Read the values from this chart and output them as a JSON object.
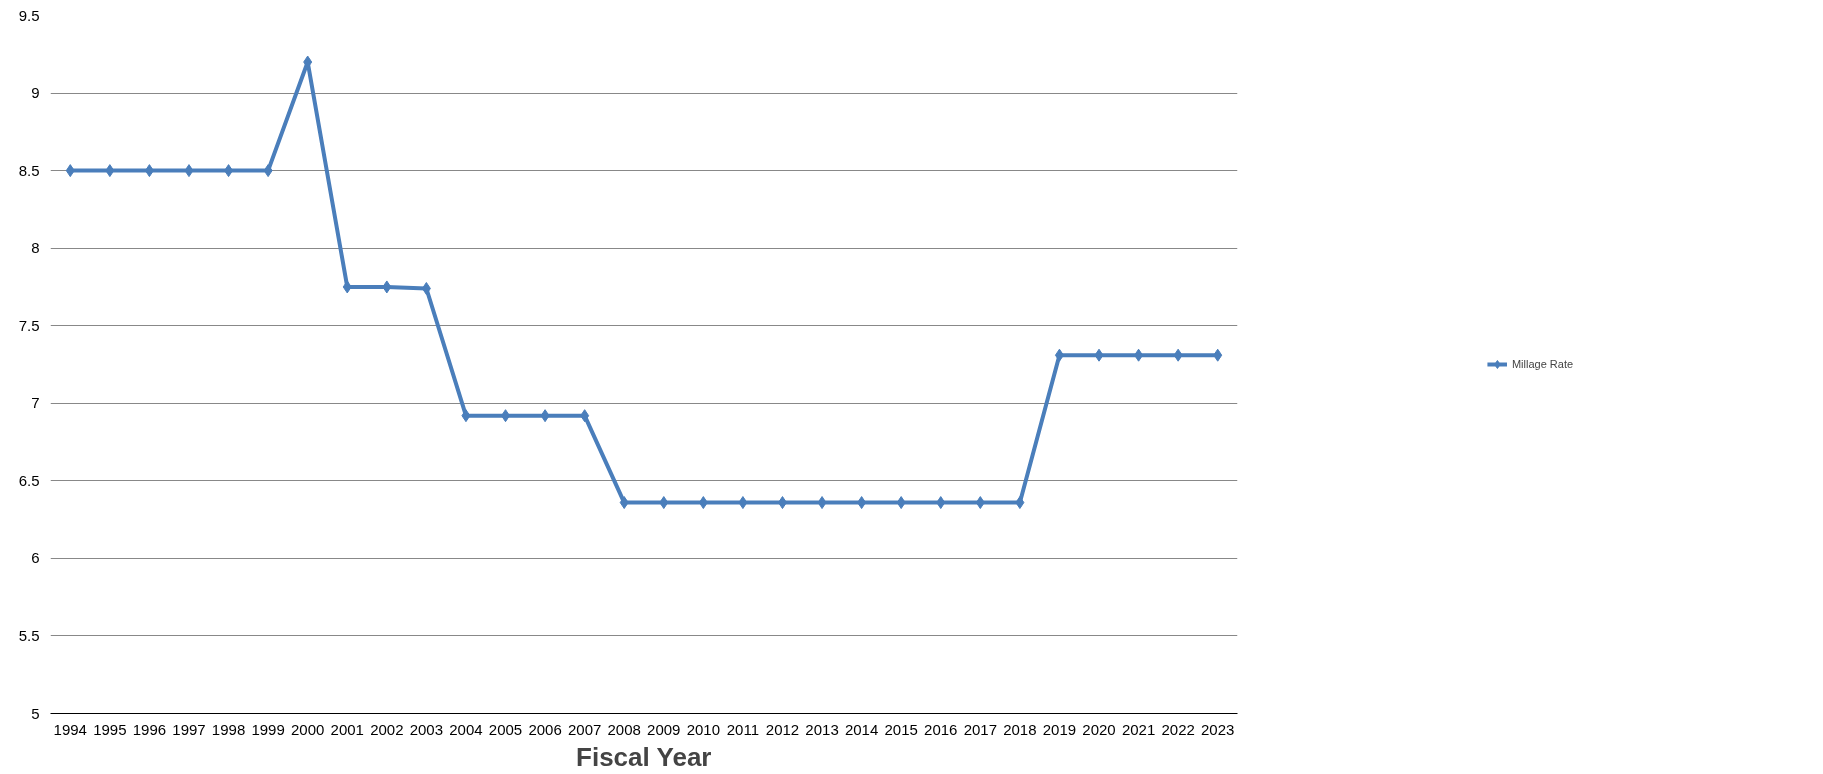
{
  "chart_data": {
    "type": "line",
    "xlabel": "Fiscal Year",
    "categories": [
      "1994",
      "1995",
      "1996",
      "1997",
      "1998",
      "1999",
      "2000",
      "2001",
      "2002",
      "2003",
      "2004",
      "2005",
      "2006",
      "2007",
      "2008",
      "2009",
      "2010",
      "2011",
      "2012",
      "2013",
      "2014",
      "2015",
      "2016",
      "2017",
      "2018",
      "2019",
      "2020",
      "2021",
      "2022",
      "2023"
    ],
    "series": [
      {
        "name": "Millage Rate",
        "color": "#4a7ebb",
        "values": [
          8.5,
          8.5,
          8.5,
          8.5,
          8.5,
          8.5,
          9.2,
          7.75,
          7.75,
          7.74,
          6.92,
          6.92,
          6.92,
          6.92,
          6.36,
          6.36,
          6.36,
          6.36,
          6.36,
          6.36,
          6.36,
          6.36,
          6.36,
          6.36,
          6.36,
          7.31,
          7.31,
          7.31,
          7.31,
          7.31
        ]
      }
    ],
    "ylim": [
      5,
      9.5
    ],
    "yticks": [
      5,
      5.5,
      6,
      6.5,
      7,
      7.5,
      8,
      8.5,
      9,
      9.5
    ],
    "grid": "y",
    "legend": "right",
    "marker": "diamond",
    "line_style": "solid"
  }
}
